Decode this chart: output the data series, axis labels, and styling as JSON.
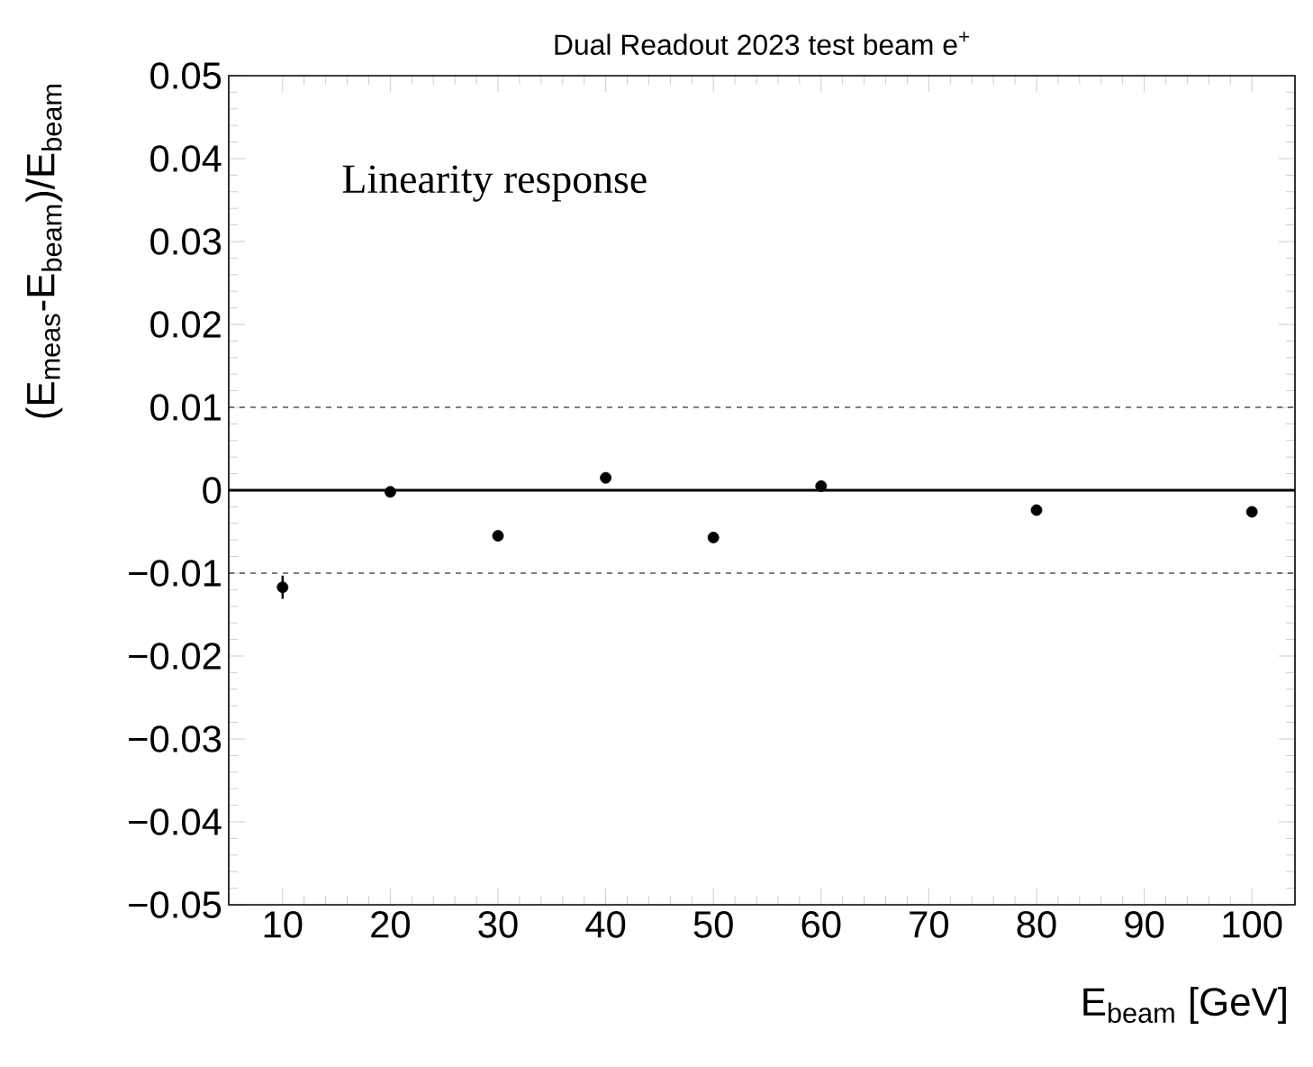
{
  "chart_data": {
    "type": "scatter",
    "title": "Dual Readout 2023 test beam e$^{+}$",
    "xlabel": "E$_{beam}$ [GeV]",
    "ylabel": "(E$_{meas}$-E$_{beam}$)/E$_{beam}$",
    "annotations": [
      "Linearity response"
    ],
    "x": [
      10,
      20,
      30,
      40,
      50,
      60,
      80,
      100
    ],
    "series": [
      {
        "color": "#000000",
        "values": [
          -0.0117,
          -0.0002,
          -0.0055,
          0.0015,
          -0.0057,
          0.0005,
          -0.0024,
          -0.0026
        ],
        "errors": [
          0.0014,
          0.0005,
          0.0006,
          0.0005,
          null,
          null,
          null,
          null
        ]
      }
    ],
    "xlim": [
      5,
      104
    ],
    "ylim": [
      -0.05,
      0.05
    ],
    "xticks": [
      10,
      20,
      30,
      40,
      50,
      60,
      70,
      80,
      90,
      100
    ],
    "yticks": [
      {
        "value": -0.05,
        "label": "−0.05"
      },
      {
        "value": -0.04,
        "label": "−0.04"
      },
      {
        "value": -0.03,
        "label": "−0.03"
      },
      {
        "value": -0.02,
        "label": "−0.02"
      },
      {
        "value": -0.01,
        "label": "−0.01"
      },
      0,
      0.01,
      0.02,
      0.03,
      0.04,
      0.05
    ],
    "ref_lines": [
      {
        "axis": "y",
        "value": 0,
        "line_style": "solid"
      },
      {
        "axis": "y",
        "value": 0.01,
        "line_style": "dashed"
      },
      {
        "axis": "y",
        "value": -0.01,
        "line_style": "dashed"
      }
    ],
    "grid": false
  }
}
